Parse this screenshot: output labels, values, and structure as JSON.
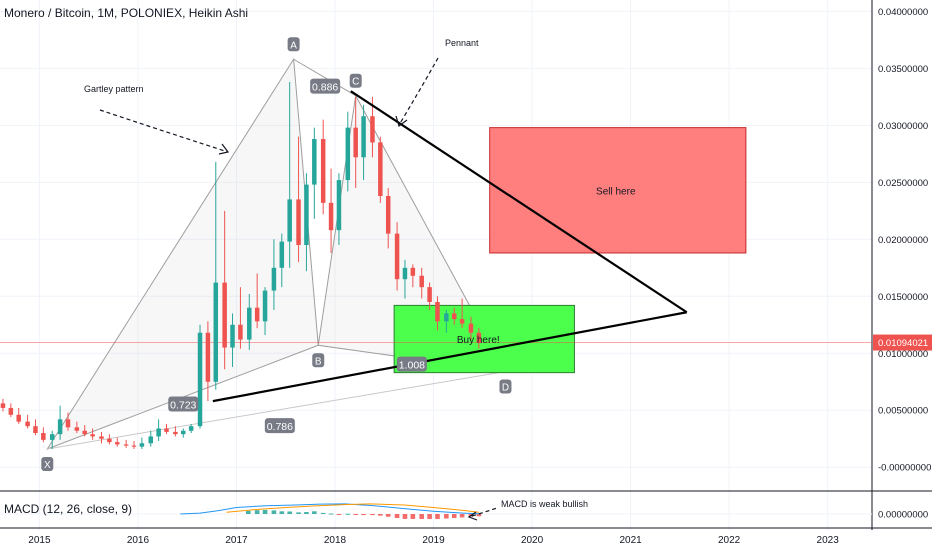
{
  "header": {
    "title": "Monero / Bitcoin, 1M, POLONIEX, Heikin Ashi"
  },
  "macd": {
    "label": "MACD (12, 26, close, 9)",
    "axis_label": "0.00000000",
    "note": "MACD is weak bullish"
  },
  "colors": {
    "up": "#26a69a",
    "down": "#ef5350",
    "sell_zone": "#ff7f7f",
    "buy_zone": "#4cff4c",
    "price_line": "#ef5350"
  },
  "chart_data": {
    "type": "candlestick",
    "ylim": [
      -0.002,
      0.041
    ],
    "y_ticks": [
      "0.04000000",
      "0.03500000",
      "0.03000000",
      "0.02500000",
      "0.02000000",
      "0.01500000",
      "0.01000000",
      "0.00500000",
      "-0.00000000"
    ],
    "y_tick_values": [
      0.04,
      0.035,
      0.03,
      0.025,
      0.02,
      0.015,
      0.01,
      0.005,
      0.0
    ],
    "x_ticks": [
      "2015",
      "2016",
      "2017",
      "2018",
      "2019",
      "2020",
      "2021",
      "2022",
      "2023"
    ],
    "x_tick_values": [
      2015,
      2016,
      2017,
      2018,
      2019,
      2020,
      2021,
      2022,
      2023
    ],
    "xlim": [
      2014.6,
      2023.45
    ],
    "last_price": {
      "value": 0.01094021,
      "label": "0.01094021"
    },
    "candles": [
      {
        "t": 2014.63,
        "o": 0.0056,
        "h": 0.006,
        "l": 0.0049,
        "c": 0.0052
      },
      {
        "t": 2014.71,
        "o": 0.0052,
        "h": 0.0056,
        "l": 0.0044,
        "c": 0.0046
      },
      {
        "t": 2014.79,
        "o": 0.0046,
        "h": 0.0052,
        "l": 0.0038,
        "c": 0.004
      },
      {
        "t": 2014.88,
        "o": 0.004,
        "h": 0.0046,
        "l": 0.0034,
        "c": 0.0036
      },
      {
        "t": 2014.96,
        "o": 0.0036,
        "h": 0.0042,
        "l": 0.0028,
        "c": 0.003
      },
      {
        "t": 2015.04,
        "o": 0.003,
        "h": 0.0035,
        "l": 0.0022,
        "c": 0.0024
      },
      {
        "t": 2015.13,
        "o": 0.0024,
        "h": 0.0032,
        "l": 0.0016,
        "c": 0.0029
      },
      {
        "t": 2015.21,
        "o": 0.0029,
        "h": 0.0054,
        "l": 0.0024,
        "c": 0.0042
      },
      {
        "t": 2015.29,
        "o": 0.0042,
        "h": 0.0048,
        "l": 0.0032,
        "c": 0.0035
      },
      {
        "t": 2015.38,
        "o": 0.0035,
        "h": 0.004,
        "l": 0.003,
        "c": 0.0032
      },
      {
        "t": 2015.46,
        "o": 0.0032,
        "h": 0.0037,
        "l": 0.0027,
        "c": 0.0029
      },
      {
        "t": 2015.54,
        "o": 0.0029,
        "h": 0.0034,
        "l": 0.0024,
        "c": 0.0027
      },
      {
        "t": 2015.63,
        "o": 0.0027,
        "h": 0.0031,
        "l": 0.0021,
        "c": 0.0025
      },
      {
        "t": 2015.71,
        "o": 0.0025,
        "h": 0.0029,
        "l": 0.002,
        "c": 0.0022
      },
      {
        "t": 2015.79,
        "o": 0.0022,
        "h": 0.0026,
        "l": 0.0018,
        "c": 0.002
      },
      {
        "t": 2015.88,
        "o": 0.002,
        "h": 0.0024,
        "l": 0.0017,
        "c": 0.0019
      },
      {
        "t": 2015.96,
        "o": 0.0019,
        "h": 0.0023,
        "l": 0.0016,
        "c": 0.0018
      },
      {
        "t": 2016.04,
        "o": 0.0018,
        "h": 0.0026,
        "l": 0.0016,
        "c": 0.0021
      },
      {
        "t": 2016.13,
        "o": 0.0021,
        "h": 0.0032,
        "l": 0.0018,
        "c": 0.0027
      },
      {
        "t": 2016.21,
        "o": 0.0027,
        "h": 0.0042,
        "l": 0.0023,
        "c": 0.0034
      },
      {
        "t": 2016.29,
        "o": 0.0034,
        "h": 0.0038,
        "l": 0.0029,
        "c": 0.0031
      },
      {
        "t": 2016.38,
        "o": 0.0031,
        "h": 0.0036,
        "l": 0.0027,
        "c": 0.0029
      },
      {
        "t": 2016.46,
        "o": 0.0029,
        "h": 0.0034,
        "l": 0.0026,
        "c": 0.0032
      },
      {
        "t": 2016.54,
        "o": 0.0032,
        "h": 0.0038,
        "l": 0.003,
        "c": 0.0036
      },
      {
        "t": 2016.63,
        "o": 0.0036,
        "h": 0.0125,
        "l": 0.0034,
        "c": 0.0118
      },
      {
        "t": 2016.71,
        "o": 0.0118,
        "h": 0.0128,
        "l": 0.0058,
        "c": 0.0075
      },
      {
        "t": 2016.79,
        "o": 0.0075,
        "h": 0.0268,
        "l": 0.0068,
        "c": 0.0162
      },
      {
        "t": 2016.88,
        "o": 0.0162,
        "h": 0.0225,
        "l": 0.0086,
        "c": 0.0105
      },
      {
        "t": 2016.96,
        "o": 0.0105,
        "h": 0.0135,
        "l": 0.0088,
        "c": 0.0125
      },
      {
        "t": 2017.04,
        "o": 0.0125,
        "h": 0.0158,
        "l": 0.0104,
        "c": 0.0112
      },
      {
        "t": 2017.13,
        "o": 0.0112,
        "h": 0.0152,
        "l": 0.0103,
        "c": 0.014
      },
      {
        "t": 2017.21,
        "o": 0.014,
        "h": 0.017,
        "l": 0.0122,
        "c": 0.0128
      },
      {
        "t": 2017.29,
        "o": 0.0128,
        "h": 0.0158,
        "l": 0.0116,
        "c": 0.0155
      },
      {
        "t": 2017.38,
        "o": 0.0155,
        "h": 0.02,
        "l": 0.0138,
        "c": 0.0175
      },
      {
        "t": 2017.46,
        "o": 0.0175,
        "h": 0.0205,
        "l": 0.0158,
        "c": 0.0198
      },
      {
        "t": 2017.54,
        "o": 0.0198,
        "h": 0.0338,
        "l": 0.0175,
        "c": 0.0235
      },
      {
        "t": 2017.63,
        "o": 0.0235,
        "h": 0.029,
        "l": 0.018,
        "c": 0.0195
      },
      {
        "t": 2017.71,
        "o": 0.0195,
        "h": 0.0258,
        "l": 0.0172,
        "c": 0.0248
      },
      {
        "t": 2017.79,
        "o": 0.0248,
        "h": 0.0298,
        "l": 0.0218,
        "c": 0.0288
      },
      {
        "t": 2017.88,
        "o": 0.0288,
        "h": 0.0305,
        "l": 0.0222,
        "c": 0.0232
      },
      {
        "t": 2017.96,
        "o": 0.0232,
        "h": 0.0262,
        "l": 0.0188,
        "c": 0.0208
      },
      {
        "t": 2018.04,
        "o": 0.0208,
        "h": 0.0258,
        "l": 0.0195,
        "c": 0.0252
      },
      {
        "t": 2018.13,
        "o": 0.0252,
        "h": 0.0312,
        "l": 0.0242,
        "c": 0.0298
      },
      {
        "t": 2018.21,
        "o": 0.0298,
        "h": 0.0325,
        "l": 0.0245,
        "c": 0.0272
      },
      {
        "t": 2018.29,
        "o": 0.0272,
        "h": 0.0318,
        "l": 0.0252,
        "c": 0.0308
      },
      {
        "t": 2018.38,
        "o": 0.0308,
        "h": 0.0325,
        "l": 0.0272,
        "c": 0.0285
      },
      {
        "t": 2018.46,
        "o": 0.0285,
        "h": 0.029,
        "l": 0.0232,
        "c": 0.0238
      },
      {
        "t": 2018.54,
        "o": 0.0238,
        "h": 0.0245,
        "l": 0.0192,
        "c": 0.0205
      },
      {
        "t": 2018.63,
        "o": 0.0205,
        "h": 0.0215,
        "l": 0.0155,
        "c": 0.0165
      },
      {
        "t": 2018.71,
        "o": 0.0165,
        "h": 0.0182,
        "l": 0.0148,
        "c": 0.0175
      },
      {
        "t": 2018.79,
        "o": 0.0175,
        "h": 0.0178,
        "l": 0.0158,
        "c": 0.0168
      },
      {
        "t": 2018.88,
        "o": 0.0168,
        "h": 0.0175,
        "l": 0.0148,
        "c": 0.0158
      },
      {
        "t": 2018.96,
        "o": 0.0158,
        "h": 0.0162,
        "l": 0.0138,
        "c": 0.0145
      },
      {
        "t": 2019.04,
        "o": 0.0145,
        "h": 0.015,
        "l": 0.012,
        "c": 0.0128
      },
      {
        "t": 2019.13,
        "o": 0.0128,
        "h": 0.0138,
        "l": 0.0118,
        "c": 0.0135
      },
      {
        "t": 2019.21,
        "o": 0.0135,
        "h": 0.014,
        "l": 0.0125,
        "c": 0.013
      },
      {
        "t": 2019.29,
        "o": 0.013,
        "h": 0.0148,
        "l": 0.0122,
        "c": 0.0126
      },
      {
        "t": 2019.38,
        "o": 0.0126,
        "h": 0.0132,
        "l": 0.0112,
        "c": 0.0118
      },
      {
        "t": 2019.46,
        "o": 0.0118,
        "h": 0.0122,
        "l": 0.0104,
        "c": 0.0109
      }
    ],
    "zones": [
      {
        "name": "sell",
        "label": "Sell here",
        "t0": 2019.57,
        "t1": 2022.17,
        "p0": 0.0188,
        "p1": 0.0298
      },
      {
        "name": "buy",
        "label": "Buy here!",
        "t0": 2018.6,
        "t1": 2020.43,
        "p0": 0.0083,
        "p1": 0.0142
      }
    ],
    "gartley": {
      "label": "Gartley pattern",
      "points": [
        {
          "name": "X",
          "t": 2015.08,
          "p": 0.0016
        },
        {
          "name": "A",
          "t": 2017.58,
          "p": 0.0358
        },
        {
          "name": "B",
          "t": 2017.83,
          "p": 0.0107
        },
        {
          "name": "C",
          "t": 2018.21,
          "p": 0.0326
        },
        {
          "name": "D",
          "t": 2019.73,
          "p": 0.0084
        }
      ],
      "ratios": [
        {
          "label": "0.886",
          "t": 2017.9,
          "p": 0.0334
        },
        {
          "label": "0.723",
          "t": 2016.46,
          "p": 0.0055
        },
        {
          "label": "1.008",
          "t": 2018.78,
          "p": 0.009
        },
        {
          "label": "0.786",
          "t": 2017.44,
          "p": 0.0036
        }
      ]
    },
    "pennant": {
      "label": "Pennant",
      "upper": [
        {
          "t": 2018.16,
          "p": 0.033
        },
        {
          "t": 2021.57,
          "p": 0.0136
        }
      ],
      "lower": [
        {
          "t": 2016.76,
          "p": 0.0058
        },
        {
          "t": 2021.57,
          "p": 0.0136
        }
      ]
    },
    "macd": {
      "histogram": [
        {
          "t": 2017.12,
          "v": 0.35
        },
        {
          "t": 2017.21,
          "v": 0.42
        },
        {
          "t": 2017.29,
          "v": 0.45
        },
        {
          "t": 2017.38,
          "v": 0.4
        },
        {
          "t": 2017.46,
          "v": 0.3
        },
        {
          "t": 2017.54,
          "v": 0.28
        },
        {
          "t": 2017.63,
          "v": 0.18
        },
        {
          "t": 2017.71,
          "v": 0.22
        },
        {
          "t": 2017.79,
          "v": 0.3
        },
        {
          "t": 2017.88,
          "v": 0.12
        },
        {
          "t": 2017.96,
          "v": 0.05
        },
        {
          "t": 2018.04,
          "v": -0.05
        },
        {
          "t": 2018.13,
          "v": 0.03
        },
        {
          "t": 2018.21,
          "v": -0.08
        },
        {
          "t": 2018.29,
          "v": -0.12
        },
        {
          "t": 2018.38,
          "v": -0.12
        },
        {
          "t": 2018.46,
          "v": -0.18
        },
        {
          "t": 2018.54,
          "v": -0.3
        },
        {
          "t": 2018.63,
          "v": -0.45
        },
        {
          "t": 2018.71,
          "v": -0.55
        },
        {
          "t": 2018.79,
          "v": -0.55
        },
        {
          "t": 2018.88,
          "v": -0.55
        },
        {
          "t": 2018.96,
          "v": -0.55
        },
        {
          "t": 2019.04,
          "v": -0.55
        },
        {
          "t": 2019.13,
          "v": -0.5
        },
        {
          "t": 2019.21,
          "v": -0.45
        },
        {
          "t": 2019.29,
          "v": -0.38
        },
        {
          "t": 2019.38,
          "v": -0.3
        },
        {
          "t": 2019.46,
          "v": -0.25
        }
      ],
      "macd_line": [
        {
          "t": 2016.43,
          "v": 0.0
        },
        {
          "t": 2016.63,
          "v": 0.1
        },
        {
          "t": 2016.8,
          "v": 0.35
        },
        {
          "t": 2017.0,
          "v": 0.72
        },
        {
          "t": 2017.3,
          "v": 0.92
        },
        {
          "t": 2017.6,
          "v": 1.0
        },
        {
          "t": 2017.85,
          "v": 1.1
        },
        {
          "t": 2018.1,
          "v": 1.12
        },
        {
          "t": 2018.4,
          "v": 0.92
        },
        {
          "t": 2018.7,
          "v": 0.6
        },
        {
          "t": 2019.0,
          "v": 0.3
        },
        {
          "t": 2019.3,
          "v": 0.1
        },
        {
          "t": 2019.46,
          "v": 0.02
        }
      ],
      "signal_line": [
        {
          "t": 2016.9,
          "v": 0.2
        },
        {
          "t": 2017.2,
          "v": 0.5
        },
        {
          "t": 2017.5,
          "v": 0.72
        },
        {
          "t": 2017.8,
          "v": 0.9
        },
        {
          "t": 2018.1,
          "v": 1.05
        },
        {
          "t": 2018.35,
          "v": 1.12
        },
        {
          "t": 2018.7,
          "v": 1.0
        },
        {
          "t": 2019.0,
          "v": 0.72
        },
        {
          "t": 2019.3,
          "v": 0.4
        },
        {
          "t": 2019.46,
          "v": 0.2
        }
      ]
    }
  }
}
